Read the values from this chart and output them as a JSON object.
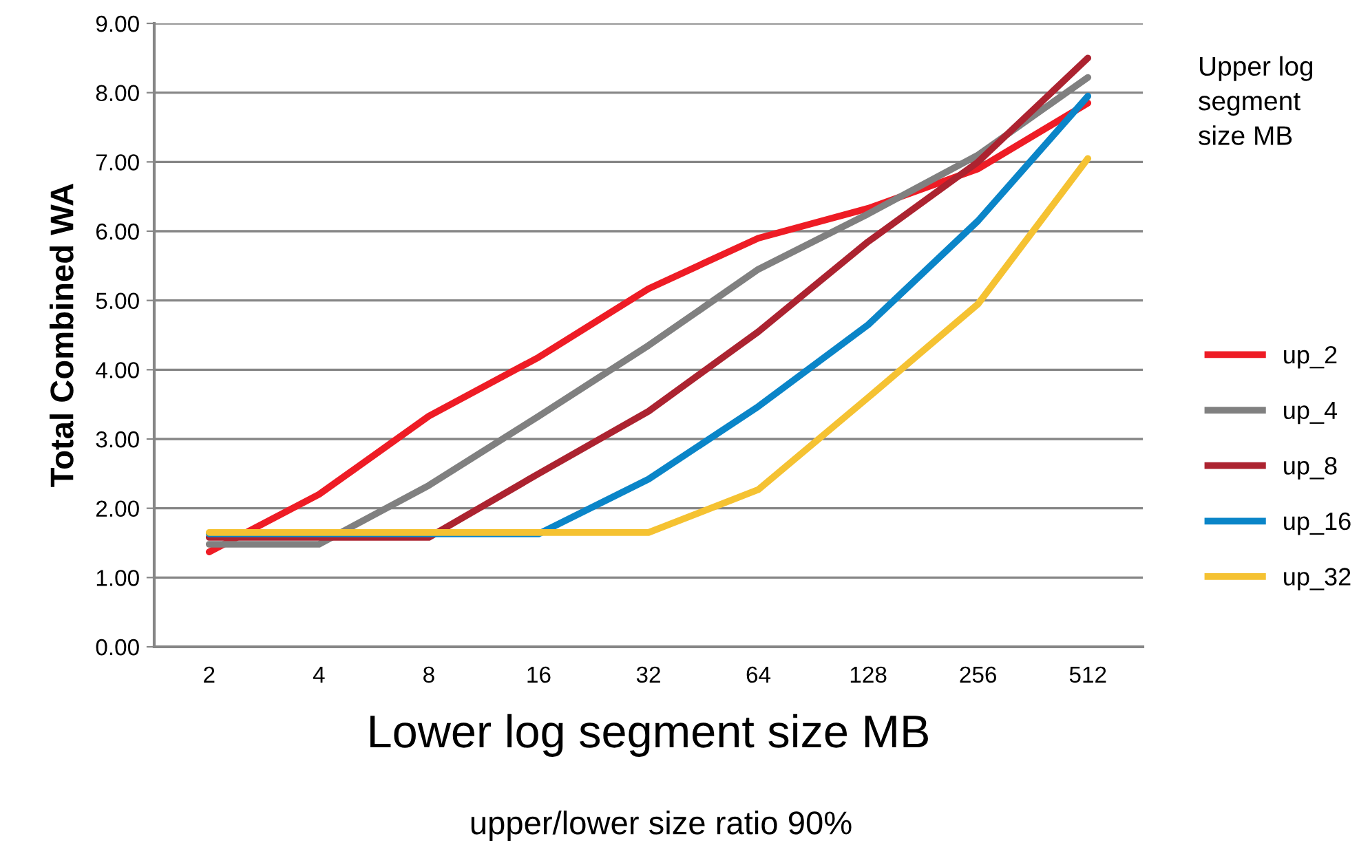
{
  "chart_data": {
    "type": "line",
    "categories": [
      "2",
      "4",
      "8",
      "16",
      "32",
      "64",
      "128",
      "256",
      "512"
    ],
    "xlabel": "Lower log segment size MB",
    "ylabel": "Total Combined WA",
    "legend_title": "Upper log\nsegment\nsize MB",
    "annotations": [
      "upper/lower size ratio 90%"
    ],
    "ylim": [
      0,
      9
    ],
    "yticks": [
      {
        "value": 0,
        "label": "0.00"
      },
      {
        "value": 1,
        "label": "1.00"
      },
      {
        "value": 2,
        "label": "2.00"
      },
      {
        "value": 3,
        "label": "3.00"
      },
      {
        "value": 4,
        "label": "4.00"
      },
      {
        "value": 5,
        "label": "5.00"
      },
      {
        "value": 6,
        "label": "6.00"
      },
      {
        "value": 7,
        "label": "7.00"
      },
      {
        "value": 8,
        "label": "8.00"
      },
      {
        "value": 9,
        "label": "9.00"
      }
    ],
    "grid": "y",
    "legend": "right",
    "marker": "none",
    "line_style": "solid",
    "series": [
      {
        "name": "up_2",
        "color": "#ee1c25",
        "values": [
          1.37,
          2.2,
          3.33,
          4.18,
          5.17,
          5.9,
          6.33,
          6.9,
          7.85
        ]
      },
      {
        "name": "up_4",
        "color": "#808080",
        "values": [
          1.48,
          1.48,
          2.33,
          3.33,
          4.35,
          5.45,
          6.25,
          7.1,
          8.22
        ]
      },
      {
        "name": "up_8",
        "color": "#ac2330",
        "values": [
          1.58,
          1.58,
          1.58,
          2.5,
          3.4,
          4.55,
          5.85,
          7.0,
          8.5
        ]
      },
      {
        "name": "up_16",
        "color": "#0a85c8",
        "values": [
          1.63,
          1.63,
          1.63,
          1.63,
          2.42,
          3.47,
          4.65,
          6.15,
          7.95
        ]
      },
      {
        "name": "up_32",
        "color": "#f5c232",
        "values": [
          1.65,
          1.65,
          1.65,
          1.65,
          1.65,
          2.27,
          3.6,
          4.95,
          7.05
        ]
      }
    ]
  }
}
